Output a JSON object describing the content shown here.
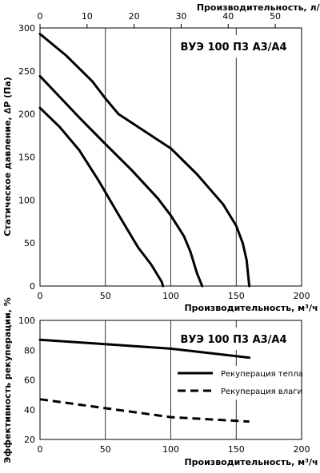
{
  "chart_data": [
    {
      "type": "line",
      "title": "ВУЭ 100 П3 А3/А4",
      "xlabel": "Производительность, м³/ч",
      "ylabel": "Статическое давление, ∆Р (Па)",
      "x2label": "Производительность, л/с",
      "xlim": [
        0,
        200
      ],
      "ylim": [
        0,
        300
      ],
      "x2lim": [
        0,
        55.6
      ],
      "xticks": [
        0,
        50,
        100,
        150,
        200
      ],
      "yticks": [
        0,
        50,
        100,
        150,
        200,
        250,
        300
      ],
      "x2ticks": [
        0,
        10,
        20,
        30,
        40,
        50
      ],
      "grid": "vertical",
      "series": [
        {
          "x": [
            0,
            15,
            30,
            45,
            60,
            75,
            85,
            93,
            94
          ],
          "y": [
            207,
            185,
            158,
            122,
            83,
            45,
            25,
            5,
            0
          ]
        },
        {
          "x": [
            0,
            15,
            30,
            50,
            70,
            90,
            100,
            110,
            115,
            120,
            124
          ],
          "y": [
            244,
            220,
            196,
            165,
            135,
            102,
            82,
            58,
            40,
            15,
            0
          ]
        },
        {
          "x": [
            0,
            20,
            40,
            50,
            60,
            80,
            100,
            120,
            140,
            150,
            155,
            158,
            160
          ],
          "y": [
            293,
            268,
            238,
            218,
            200,
            180,
            160,
            130,
            95,
            70,
            50,
            30,
            0
          ]
        }
      ]
    },
    {
      "type": "line",
      "title": "ВУЭ 100 П3 А3/А4",
      "xlabel": "Производительность, м³/ч",
      "ylabel": "Эффективность рекуперации, %",
      "xlim": [
        0,
        200
      ],
      "ylim": [
        20,
        100
      ],
      "xticks": [
        0,
        50,
        100,
        150,
        200
      ],
      "yticks": [
        20,
        40,
        60,
        80,
        100
      ],
      "grid": "vertical",
      "legend": "center-right",
      "series": [
        {
          "name": "Рекуперация тепла",
          "style": "solid",
          "x": [
            0,
            50,
            100,
            160
          ],
          "y": [
            87,
            84,
            81,
            75
          ]
        },
        {
          "name": "Рекуперация влаги",
          "style": "dashed",
          "x": [
            0,
            50,
            100,
            160
          ],
          "y": [
            47,
            41,
            35,
            32
          ]
        }
      ]
    }
  ]
}
